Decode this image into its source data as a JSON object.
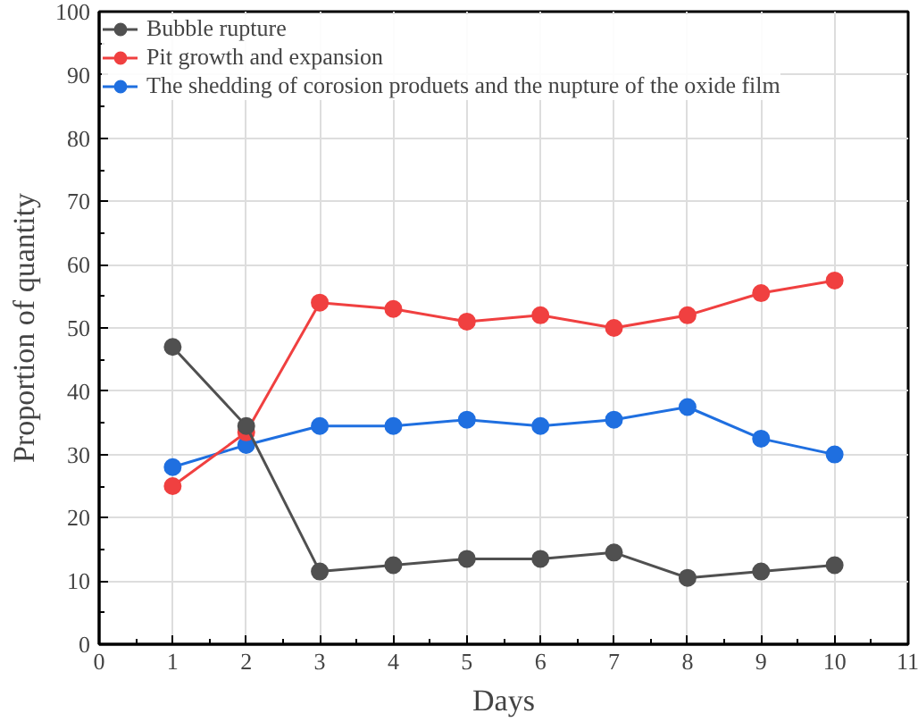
{
  "chart_data": {
    "type": "line",
    "xlabel": "Days",
    "ylabel": "Proportion of quantity",
    "x": [
      1,
      2,
      3,
      4,
      5,
      6,
      7,
      8,
      9,
      10
    ],
    "series": [
      {
        "name": "Bubble rupture",
        "color": "#505050",
        "values": [
          47,
          34.5,
          11.5,
          12.5,
          13.5,
          13.5,
          14.5,
          10.5,
          11.5,
          12.5
        ]
      },
      {
        "name": "Pit growth and expansion",
        "color": "#f04040",
        "values": [
          25,
          33.5,
          54,
          53,
          51,
          52,
          50,
          52,
          55.5,
          57.5
        ]
      },
      {
        "name": "The shedding of corosion produets and the nupture of the oxide film",
        "color": "#1f6fe0",
        "values": [
          28,
          31.5,
          34.5,
          34.5,
          35.5,
          34.5,
          35.5,
          37.5,
          32.5,
          30
        ]
      }
    ],
    "xlim": [
      0,
      11
    ],
    "xticks": [
      0,
      1,
      2,
      3,
      4,
      5,
      6,
      7,
      8,
      9,
      10,
      11
    ],
    "ylim": [
      0,
      100
    ],
    "yticks": [
      0,
      10,
      20,
      30,
      40,
      50,
      60,
      70,
      80,
      90,
      100
    ],
    "grid": true,
    "legend": "top left",
    "marker": "circle",
    "line_style": "solid"
  }
}
